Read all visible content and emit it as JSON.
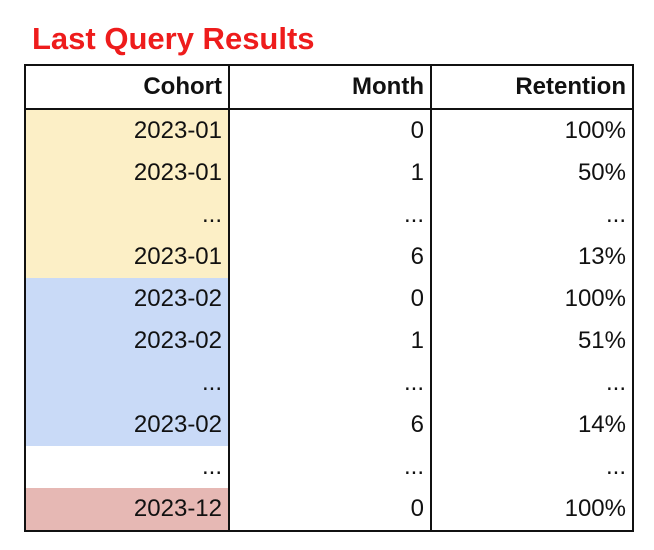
{
  "title": "Last Query Results",
  "table": {
    "headers": [
      "Cohort",
      "Month",
      "Retention"
    ],
    "rows": [
      {
        "cohort": "2023-01",
        "month": "0",
        "retention": "100%",
        "color": "yellow"
      },
      {
        "cohort": "2023-01",
        "month": "1",
        "retention": "50%",
        "color": "yellow"
      },
      {
        "cohort": "...",
        "month": "...",
        "retention": "...",
        "color": "yellow"
      },
      {
        "cohort": "2023-01",
        "month": "6",
        "retention": "13%",
        "color": "yellow"
      },
      {
        "cohort": "2023-02",
        "month": "0",
        "retention": "100%",
        "color": "blue"
      },
      {
        "cohort": "2023-02",
        "month": "1",
        "retention": "51%",
        "color": "blue"
      },
      {
        "cohort": "...",
        "month": "...",
        "retention": "...",
        "color": "blue"
      },
      {
        "cohort": "2023-02",
        "month": "6",
        "retention": "14%",
        "color": "blue"
      },
      {
        "cohort": "...",
        "month": "...",
        "retention": "...",
        "color": "none"
      },
      {
        "cohort": "2023-12",
        "month": "0",
        "retention": "100%",
        "color": "red"
      }
    ]
  },
  "colors": {
    "title": "#ee1c1c",
    "yellow": "#fcefc6",
    "blue": "#c9daf7",
    "red": "#e6b8b4",
    "none": "#ffffff"
  }
}
